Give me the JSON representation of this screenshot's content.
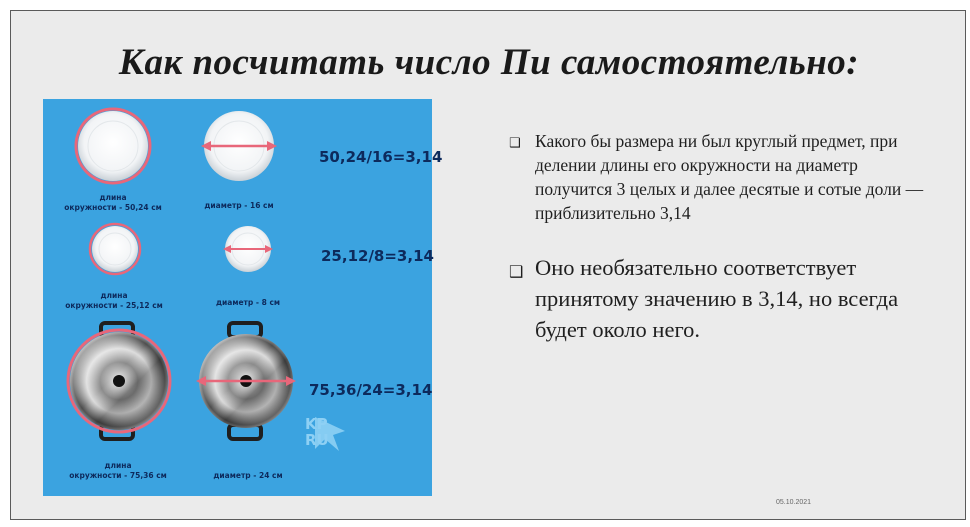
{
  "slide": {
    "title": "Как посчитать число Пи самостоятельно:",
    "date": "05.10.2021"
  },
  "infographic": {
    "rows": [
      {
        "circumference_caption": "длина\nокружности - 50,24 см",
        "diameter_caption": "диаметр - 16 см",
        "formula": "50,24/16=3,14"
      },
      {
        "circumference_caption": "длина\nокружности - 25,12 см",
        "diameter_caption": "диаметр - 8 см",
        "formula": "25,12/8=3,14"
      },
      {
        "circumference_caption": "длина\nокружности - 75,36 см",
        "diameter_caption": "диаметр - 24 см",
        "formula": "75,36/24=3,14"
      }
    ],
    "logo": "KP\nRU",
    "colors": {
      "background": "#3ba3e0",
      "measure": "#e8677a",
      "text": "#0d2a5c"
    }
  },
  "bullets": [
    {
      "icon": "checkbox-icon",
      "text": "Какого бы размера ни был круглый предмет, при делении длины его окружности на диаметр получится 3 целых и далее десятые и сотые доли — приблизительно 3,14"
    },
    {
      "icon": "checkbox-icon",
      "text": "Оно необязательно соответствует принятому значению в 3,14, но всегда будет около него."
    }
  ]
}
